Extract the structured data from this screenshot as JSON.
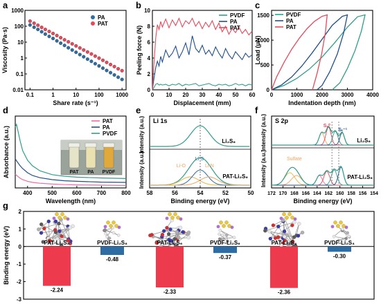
{
  "colors": {
    "red": "#e8485a",
    "blue": "#2e6da4",
    "teal": "#2e9e8a",
    "pink": "#f06aa0",
    "orange": "#f2a35a",
    "yellow": "#e2b93b",
    "navy": "#1f4e8c",
    "axis": "#000000"
  },
  "chart_data": [
    {
      "panel": "a",
      "type": "scatter",
      "xlabel": "Share rate (s⁻¹)",
      "ylabel": "Viscosity (Pa·s)",
      "xscale": "log",
      "yscale": "log",
      "xlim": [
        0.06,
        1500
      ],
      "ylim": [
        0.01,
        1000
      ],
      "xticks": [
        "0.1",
        "1",
        "10",
        "100",
        "1000"
      ],
      "yticks": [
        "0.01",
        "0.1",
        "1",
        "10",
        "100",
        "1000"
      ],
      "legend": "top-right",
      "series": [
        {
          "name": "PA",
          "x": [
            0.1,
            0.15,
            0.22,
            0.32,
            0.46,
            0.68,
            1,
            1.47,
            2.15,
            3.16,
            4.64,
            6.81,
            10,
            14.7,
            21.5,
            31.6,
            46.4,
            68.1,
            100,
            147,
            215,
            316,
            464,
            681,
            1000
          ],
          "y": [
            120,
            87,
            63,
            45,
            32,
            23,
            17,
            12,
            8.6,
            6.2,
            4.4,
            3.2,
            2.3,
            1.65,
            1.2,
            0.85,
            0.62,
            0.44,
            0.32,
            0.23,
            0.165,
            0.12,
            0.086,
            0.062,
            0.045
          ]
        },
        {
          "name": "PAT",
          "x": [
            0.1,
            0.15,
            0.22,
            0.32,
            0.46,
            0.68,
            1,
            1.47,
            2.15,
            3.16,
            4.64,
            6.81,
            10,
            14.7,
            21.5,
            31.6,
            46.4,
            68.1,
            100,
            147,
            215,
            316,
            464,
            681,
            1000
          ],
          "y": [
            210,
            155,
            115,
            85,
            63,
            47,
            35,
            26,
            19,
            14,
            10.5,
            7.8,
            5.8,
            4.3,
            3.2,
            2.4,
            1.8,
            1.32,
            0.98,
            0.72,
            0.53,
            0.39,
            0.29,
            0.21,
            0.16
          ]
        }
      ]
    },
    {
      "panel": "b",
      "type": "line",
      "xlabel": "Displacement (mm)",
      "ylabel": "Peeling force (N)",
      "xlim": [
        0,
        60
      ],
      "ylim": [
        0,
        10
      ],
      "xticks": [
        "0",
        "10",
        "20",
        "30",
        "40",
        "50",
        "60"
      ],
      "yticks": [
        "0",
        "2",
        "4",
        "6",
        "8",
        "10"
      ],
      "legend": "top-right",
      "series": [
        {
          "name": "PVDF",
          "x": [
            0,
            1,
            2,
            3,
            4,
            5,
            6,
            8,
            10,
            12,
            14,
            16,
            18,
            20,
            22,
            24,
            26,
            28,
            30,
            32,
            34,
            36,
            38,
            40,
            42,
            44,
            46,
            48,
            50,
            52,
            54,
            56,
            58,
            60
          ],
          "y": [
            0,
            0.3,
            0.7,
            0.8,
            0.6,
            0.7,
            0.6,
            0.7,
            0.5,
            0.7,
            0.6,
            0.8,
            0.5,
            0.7,
            0.6,
            0.7,
            0.8,
            0.5,
            0.6,
            0.7,
            0.8,
            0.6,
            0.5,
            0.7,
            0.6,
            0.7,
            0.5,
            0.6,
            0.8,
            0.6,
            0.7,
            0.5,
            0.7,
            0.6
          ]
        },
        {
          "name": "PA",
          "x": [
            0,
            1,
            2,
            3,
            4,
            5,
            6,
            8,
            10,
            12,
            14,
            16,
            18,
            20,
            22,
            24,
            26,
            28,
            30,
            32,
            34,
            36,
            38,
            40,
            42,
            44,
            46,
            48,
            50,
            52,
            54,
            56,
            58,
            60
          ],
          "y": [
            0,
            1.5,
            2.8,
            3.6,
            3.0,
            4.2,
            3.5,
            5.0,
            4.1,
            4.6,
            5.5,
            4.0,
            4.8,
            5.9,
            4.4,
            6.8,
            5.2,
            4.7,
            5.6,
            4.5,
            5.0,
            4.3,
            5.4,
            4.6,
            4.0,
            5.2,
            4.4,
            3.9,
            4.8,
            4.3,
            3.8,
            4.6,
            4.1,
            4.4
          ]
        },
        {
          "name": "PAT",
          "x": [
            0,
            1,
            2,
            3,
            4,
            5,
            6,
            8,
            10,
            12,
            14,
            16,
            18,
            20,
            22,
            24,
            26,
            28,
            30,
            32,
            34,
            36,
            38,
            40,
            42,
            44,
            46,
            48,
            50,
            52,
            54,
            56,
            58,
            60
          ],
          "y": [
            0,
            3.5,
            6.5,
            8.2,
            7.6,
            8.6,
            7.9,
            8.9,
            7.8,
            8.8,
            8.1,
            9.0,
            7.9,
            8.7,
            8.3,
            9.0,
            8.0,
            8.6,
            7.7,
            8.5,
            7.9,
            8.7,
            7.6,
            8.4,
            7.3,
            8.0,
            7.0,
            7.7,
            7.2,
            7.9,
            7.1,
            7.6,
            6.9,
            7.4
          ]
        }
      ]
    },
    {
      "panel": "c",
      "type": "line",
      "xlabel": "Indentation depth (nm)",
      "ylabel": "Load (μN)",
      "xlim": [
        0,
        4000
      ],
      "ylim": [
        0,
        1600
      ],
      "xticks": [
        "0",
        "1000",
        "2000",
        "3000",
        "4000"
      ],
      "yticks": [
        "0",
        "500",
        "1000",
        "1500"
      ],
      "legend": "top-left",
      "series": [
        {
          "name": "PVDF",
          "x": [
            0,
            500,
            1000,
            1500,
            2000,
            2500,
            3000,
            3400,
            3700,
            3550,
            3300,
            3000,
            2700,
            2400
          ],
          "y": [
            0,
            90,
            230,
            420,
            660,
            950,
            1260,
            1470,
            1510,
            1180,
            790,
            430,
            140,
            0
          ]
        },
        {
          "name": "PA",
          "x": [
            0,
            400,
            800,
            1200,
            1600,
            2000,
            2400,
            2800,
            3000,
            2850,
            2600,
            2300,
            2000,
            1800
          ],
          "y": [
            0,
            100,
            260,
            480,
            740,
            1020,
            1300,
            1480,
            1510,
            1140,
            720,
            360,
            90,
            0
          ]
        },
        {
          "name": "PAT",
          "x": [
            0,
            200,
            500,
            800,
            1100,
            1400,
            1700,
            2000,
            2200,
            2130,
            1980,
            1800,
            1620
          ],
          "y": [
            0,
            260,
            560,
            820,
            1040,
            1230,
            1380,
            1480,
            1510,
            1150,
            720,
            330,
            0
          ]
        }
      ]
    },
    {
      "panel": "d",
      "type": "line",
      "xlabel": "Wavelength (nm)",
      "ylabel": "Absorbance (a.u.)",
      "xlim": [
        350,
        800
      ],
      "ylim": [
        0,
        2.6
      ],
      "xticks": [
        "400",
        "500",
        "600",
        "700",
        "800"
      ],
      "legend": "top-right",
      "inset_labels": [
        "PAT",
        "PA",
        "PVDF"
      ],
      "series": [
        {
          "name": "PAT",
          "x": [
            350,
            360,
            370,
            380,
            400,
            420,
            450,
            500,
            550,
            600,
            700,
            800
          ],
          "y": [
            0.5,
            0.42,
            0.35,
            0.3,
            0.24,
            0.2,
            0.17,
            0.14,
            0.12,
            0.11,
            0.1,
            0.09
          ]
        },
        {
          "name": "PA",
          "x": [
            350,
            360,
            370,
            380,
            400,
            420,
            450,
            500,
            550,
            600,
            700,
            800
          ],
          "y": [
            1.05,
            0.92,
            0.8,
            0.7,
            0.55,
            0.45,
            0.37,
            0.3,
            0.26,
            0.24,
            0.21,
            0.2
          ]
        },
        {
          "name": "PVDF",
          "x": [
            350,
            355,
            360,
            370,
            380,
            400,
            420,
            450,
            500,
            550,
            600,
            700,
            800
          ],
          "y": [
            2.2,
            2.3,
            2.1,
            1.7,
            1.35,
            1.0,
            0.8,
            0.62,
            0.48,
            0.42,
            0.39,
            0.36,
            0.34
          ]
        }
      ]
    },
    {
      "panel": "e",
      "type": "line",
      "title": "Li 1s",
      "xlabel": "Binding energy (eV)",
      "ylabel": "Intensity (a.u.)",
      "xlim": [
        58,
        50
      ],
      "xticks": [
        "58",
        "56",
        "54",
        "52",
        "50"
      ],
      "top_label": "Li₂S₆",
      "bottom_label": "PAT-Li₂S₆",
      "peak_labels": [
        "Li-S",
        "Li-O",
        "Li-N"
      ],
      "reference_line": 54.0
    },
    {
      "panel": "f",
      "type": "line",
      "title": "S 2p",
      "xlabel": "Binding energy (eV)",
      "ylabel": "Intensity (a.u.)",
      "xlim": [
        172,
        154
      ],
      "xticks": [
        "172",
        "170",
        "168",
        "166",
        "164",
        "162",
        "160",
        "158",
        "156",
        "154"
      ],
      "top_label": "Li₂S₆",
      "bottom_label": "PAT-Li₂S₆",
      "peak_labels": [
        "Sₓ⁰",
        "Sₜ⁻¹",
        "Sulfate"
      ]
    },
    {
      "panel": "g",
      "type": "bar",
      "ylabel": "Binding energy (eV)",
      "ylim": [
        -3,
        2
      ],
      "yticks": [
        "-3",
        "-2",
        "-1",
        "0",
        "1",
        "2"
      ],
      "categories": [
        "PAT-Li₂S₈",
        "PVDF-Li₂S₈",
        "PAT-Li₂S₆",
        "PVDF-Li₂S₆",
        "PAT-Li₂S₄",
        "PVDF-Li₂S₄"
      ],
      "values": [
        -2.24,
        -0.48,
        -2.33,
        -0.37,
        -2.36,
        -0.3
      ],
      "value_labels": [
        "-2.24",
        "-0.48",
        "-2.33",
        "-0.37",
        "-2.36",
        "-0.30"
      ],
      "bar_colors": [
        "#ee3a4d",
        "#2e6da4",
        "#ee3a4d",
        "#2e6da4",
        "#ee3a4d",
        "#2e6da4"
      ]
    }
  ]
}
